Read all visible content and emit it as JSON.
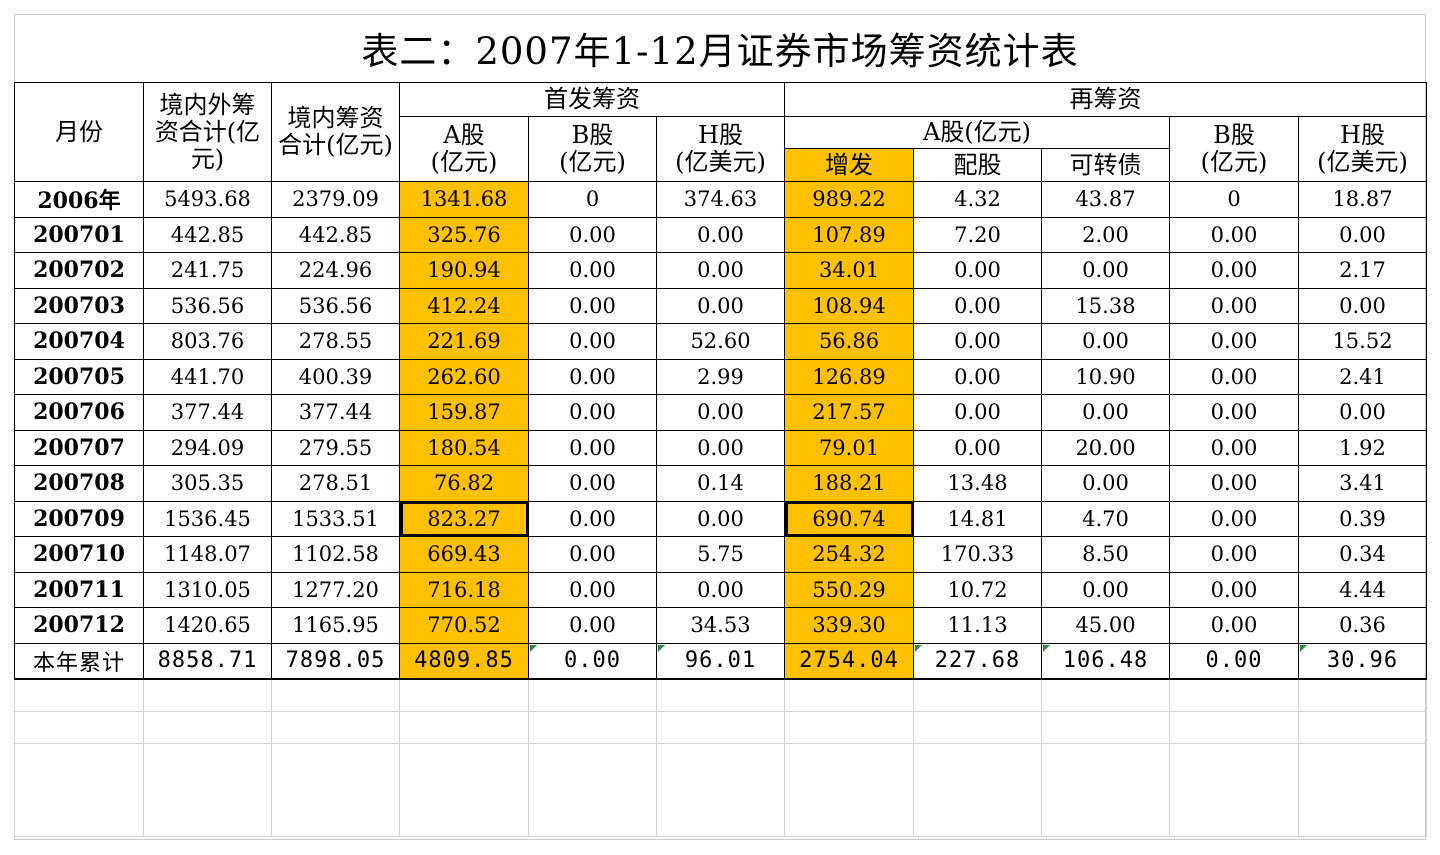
{
  "title": "表二：2007年1-12月证券市场筹资统计表",
  "colors": {
    "highlight": "#ffc000",
    "error_triangle": "#2e8b3d"
  },
  "headers": {
    "month": "月份",
    "total_domestic_foreign": "境内外筹资合计(亿元)",
    "total_domestic": "境内筹资合计(亿元)",
    "ipo_group": "首发筹资",
    "refinance_group": "再筹资",
    "ipo_a": "A股\n(亿元)",
    "ipo_b": "B股\n(亿元)",
    "ipo_h": "H股\n(亿美元)",
    "re_a_group": "A股(亿元)",
    "re_a_add": "增发",
    "re_a_rights": "配股",
    "re_a_convertible": "可转债",
    "re_b": "B股\n(亿元)",
    "re_h": "H股\n(亿美元)"
  },
  "rows": [
    {
      "month": "2006年",
      "c1": "5493.68",
      "c2": "2379.09",
      "c3": "1341.68",
      "c4": "0",
      "c5": "374.63",
      "c6": "989.22",
      "c7": "4.32",
      "c8": "43.87",
      "c9": "0",
      "c10": "18.87"
    },
    {
      "month": "200701",
      "c1": "442.85",
      "c2": "442.85",
      "c3": "325.76",
      "c4": "0.00",
      "c5": "0.00",
      "c6": "107.89",
      "c7": "7.20",
      "c8": "2.00",
      "c9": "0.00",
      "c10": "0.00"
    },
    {
      "month": "200702",
      "c1": "241.75",
      "c2": "224.96",
      "c3": "190.94",
      "c4": "0.00",
      "c5": "0.00",
      "c6": "34.01",
      "c7": "0.00",
      "c8": "0.00",
      "c9": "0.00",
      "c10": "2.17"
    },
    {
      "month": "200703",
      "c1": "536.56",
      "c2": "536.56",
      "c3": "412.24",
      "c4": "0.00",
      "c5": "0.00",
      "c6": "108.94",
      "c7": "0.00",
      "c8": "15.38",
      "c9": "0.00",
      "c10": "0.00"
    },
    {
      "month": "200704",
      "c1": "803.76",
      "c2": "278.55",
      "c3": "221.69",
      "c4": "0.00",
      "c5": "52.60",
      "c6": "56.86",
      "c7": "0.00",
      "c8": "0.00",
      "c9": "0.00",
      "c10": "15.52"
    },
    {
      "month": "200705",
      "c1": "441.70",
      "c2": "400.39",
      "c3": "262.60",
      "c4": "0.00",
      "c5": "2.99",
      "c6": "126.89",
      "c7": "0.00",
      "c8": "10.90",
      "c9": "0.00",
      "c10": "2.41"
    },
    {
      "month": "200706",
      "c1": "377.44",
      "c2": "377.44",
      "c3": "159.87",
      "c4": "0.00",
      "c5": "0.00",
      "c6": "217.57",
      "c7": "0.00",
      "c8": "0.00",
      "c9": "0.00",
      "c10": "0.00"
    },
    {
      "month": "200707",
      "c1": "294.09",
      "c2": "279.55",
      "c3": "180.54",
      "c4": "0.00",
      "c5": "0.00",
      "c6": "79.01",
      "c7": "0.00",
      "c8": "20.00",
      "c9": "0.00",
      "c10": "1.92"
    },
    {
      "month": "200708",
      "c1": "305.35",
      "c2": "278.51",
      "c3": "76.82",
      "c4": "0.00",
      "c5": "0.14",
      "c6": "188.21",
      "c7": "13.48",
      "c8": "0.00",
      "c9": "0.00",
      "c10": "3.41"
    },
    {
      "month": "200709",
      "c1": "1536.45",
      "c2": "1533.51",
      "c3": "823.27",
      "c4": "0.00",
      "c5": "0.00",
      "c6": "690.74",
      "c7": "14.81",
      "c8": "4.70",
      "c9": "0.00",
      "c10": "0.39"
    },
    {
      "month": "200710",
      "c1": "1148.07",
      "c2": "1102.58",
      "c3": "669.43",
      "c4": "0.00",
      "c5": "5.75",
      "c6": "254.32",
      "c7": "170.33",
      "c8": "8.50",
      "c9": "0.00",
      "c10": "0.34"
    },
    {
      "month": "200711",
      "c1": "1310.05",
      "c2": "1277.20",
      "c3": "716.18",
      "c4": "0.00",
      "c5": "0.00",
      "c6": "550.29",
      "c7": "10.72",
      "c8": "0.00",
      "c9": "0.00",
      "c10": "4.44"
    },
    {
      "month": "200712",
      "c1": "1420.65",
      "c2": "1165.95",
      "c3": "770.52",
      "c4": "0.00",
      "c5": "34.53",
      "c6": "339.30",
      "c7": "11.13",
      "c8": "45.00",
      "c9": "0.00",
      "c10": "0.36"
    }
  ],
  "total": {
    "month": "本年累计",
    "c1": "8858.71",
    "c2": "7898.05",
    "c3": "4809.85",
    "c4": "0.00",
    "c5": "96.01",
    "c6": "2754.04",
    "c7": "227.68",
    "c8": "106.48",
    "c9": "0.00",
    "c10": "30.96"
  }
}
